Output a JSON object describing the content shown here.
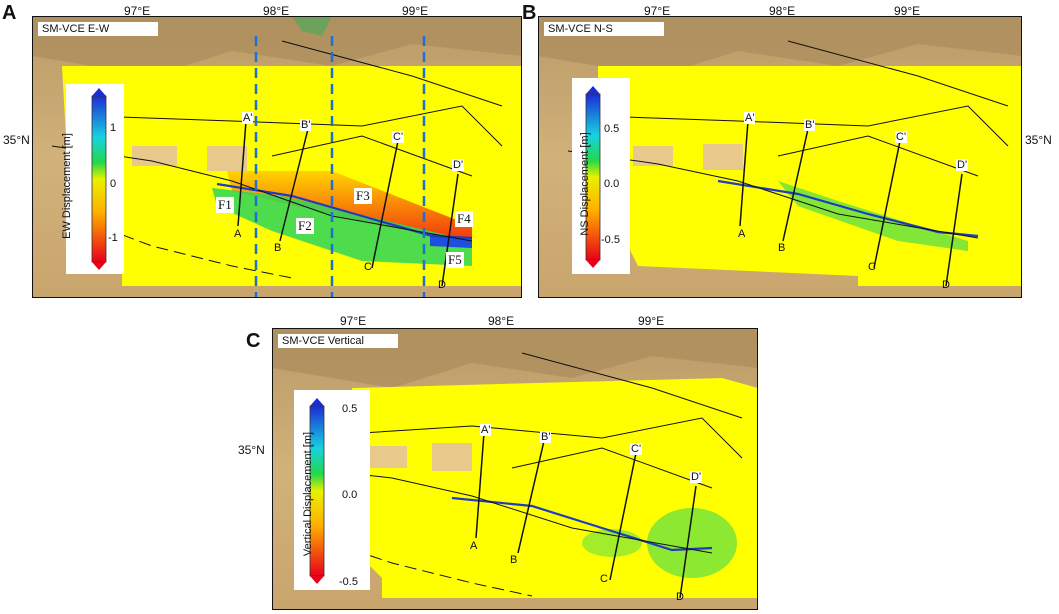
{
  "panels": [
    {
      "letter": "A",
      "title": "SM-VCE E-W",
      "colorbar_label": "EW Displacement [m]",
      "colorbar_ticks": [
        "1",
        "0",
        "-1"
      ],
      "lon_labels": [
        "97°E",
        "98°E",
        "99°E"
      ],
      "lat_label_left": "35°N",
      "lat_label_right": "",
      "profile_labels": [
        "A'",
        "B'",
        "C'",
        "D'",
        "A",
        "B",
        "C",
        "D"
      ],
      "fault_labels": [
        "F1",
        "F2",
        "F3",
        "F4",
        "F5"
      ],
      "colors": {
        "east": "#1f4fe0",
        "west": "#e8001a",
        "zero": "#ffff00"
      }
    },
    {
      "letter": "B",
      "title": "SM-VCE N-S",
      "colorbar_label": "NS Displacement [m]",
      "colorbar_ticks": [
        "0.5",
        "0.0",
        "-0.5"
      ],
      "lon_labels": [
        "97°E",
        "98°E",
        "99°E"
      ],
      "lat_label_left": "",
      "lat_label_right": "35°N",
      "profile_labels": [
        "A'",
        "B'",
        "C'",
        "D'",
        "A",
        "B",
        "C",
        "D"
      ]
    },
    {
      "letter": "C",
      "title": "SM-VCE Vertical",
      "colorbar_label": "Vertical Displacement [m]",
      "colorbar_ticks": [
        "0.5",
        "0.0",
        "-0.5"
      ],
      "lon_labels": [
        "97°E",
        "98°E",
        "99°E"
      ],
      "lat_label_left": "35°N",
      "lat_label_right": "",
      "profile_labels": [
        "A'",
        "B'",
        "C'",
        "D'",
        "A",
        "B",
        "C",
        "D"
      ]
    }
  ]
}
